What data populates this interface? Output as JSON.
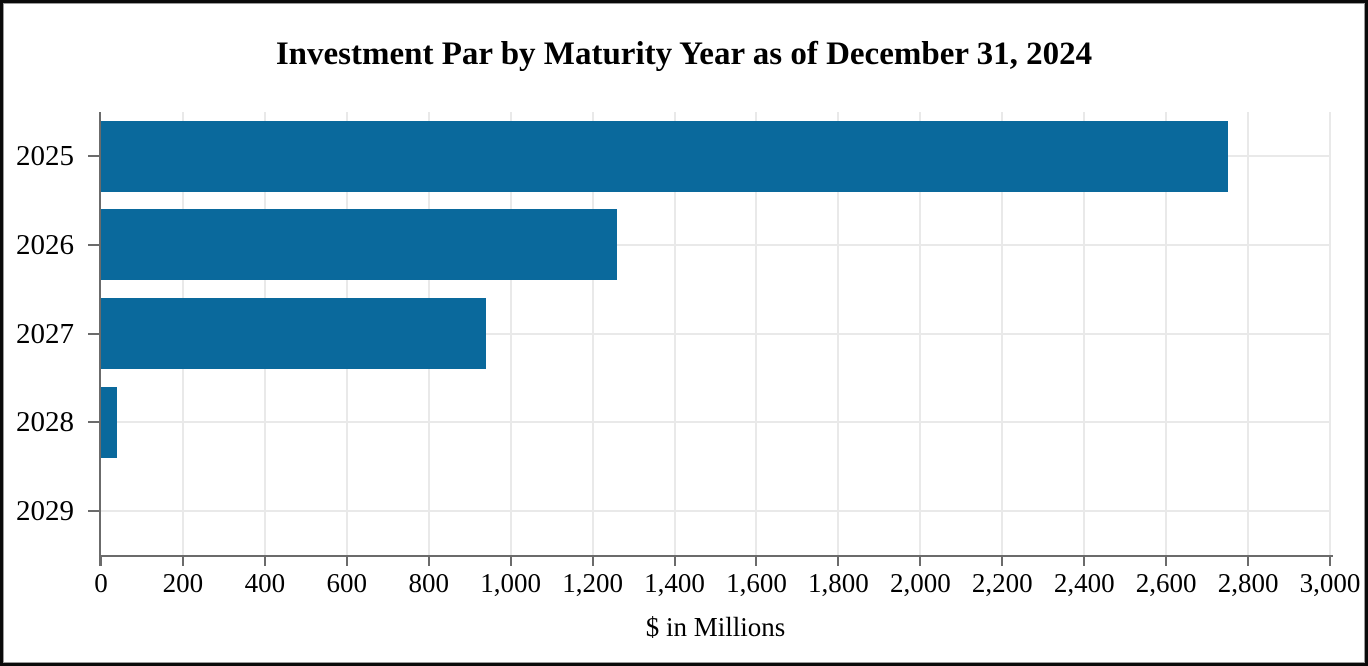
{
  "chart_data": {
    "type": "bar",
    "orientation": "horizontal",
    "title": "Investment Par by Maturity Year as of December 31, 2024",
    "categories": [
      "2025",
      "2026",
      "2027",
      "2028",
      "2029"
    ],
    "values": [
      2750,
      1260,
      940,
      40,
      0
    ],
    "xlabel": "$ in Millions",
    "ylabel": "",
    "xlim": [
      0,
      3000
    ],
    "x_tick_interval": 200,
    "x_tick_labels": [
      "0",
      "200",
      "400",
      "600",
      "800",
      "1,000",
      "1,200",
      "1,400",
      "1,600",
      "1,800",
      "2,000",
      "2,200",
      "2,400",
      "2,600",
      "2,800",
      "3,000"
    ],
    "grid": "both",
    "legend": "none",
    "colors": {
      "bar": "#0a699c",
      "gridline": "#e9e9e9",
      "axis": "#6b6b6b",
      "text": "#000000",
      "frame_border": "#0a0a0a",
      "background": "#ffffff"
    }
  }
}
